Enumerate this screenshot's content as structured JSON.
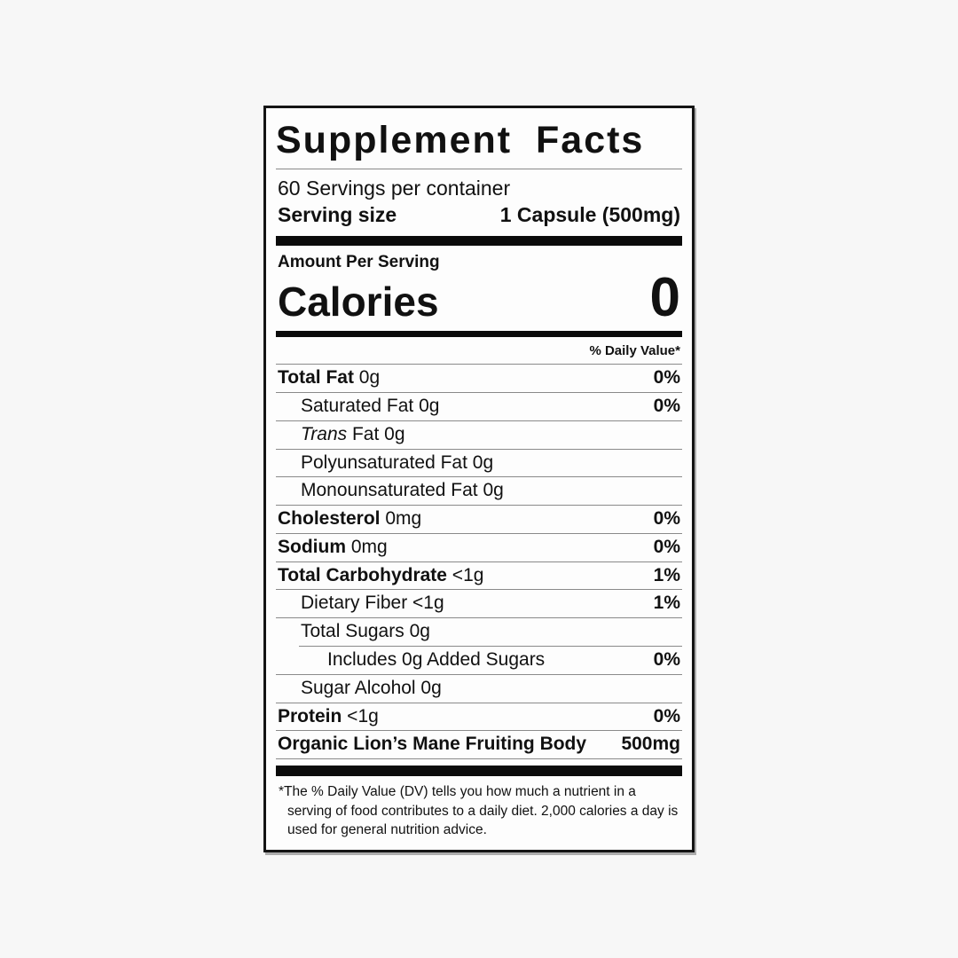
{
  "label": {
    "title": "Supplement Facts",
    "servings_per_container": "60 Servings per container",
    "serving_size_label": "Serving size",
    "serving_size_value": "1 Capsule (500mg)",
    "amount_per_serving": "Amount Per Serving",
    "calories_label": "Calories",
    "calories_value": "0",
    "daily_value_header": "% Daily Value*",
    "rows": [
      {
        "bold": "Total Fat",
        "rest": " 0g",
        "dv": "0%",
        "indent": 0
      },
      {
        "rest": "Saturated Fat 0g",
        "dv": "0%",
        "indent": 1
      },
      {
        "italic": "Trans",
        "rest": " Fat 0g",
        "dv": "",
        "indent": 1
      },
      {
        "rest": "Polyunsaturated Fat 0g",
        "dv": "",
        "indent": 1
      },
      {
        "rest": "Monounsaturated Fat 0g",
        "dv": "",
        "indent": 1
      },
      {
        "bold": "Cholesterol",
        "rest": " 0mg",
        "dv": "0%",
        "indent": 0
      },
      {
        "bold": "Sodium",
        "rest": " 0mg",
        "dv": "0%",
        "indent": 0
      },
      {
        "bold": "Total Carbohydrate",
        "rest": " <1g",
        "dv": "1%",
        "indent": 0
      },
      {
        "rest": "Dietary Fiber <1g",
        "dv": "1%",
        "indent": 1
      },
      {
        "rest": "Total Sugars 0g",
        "dv": "",
        "indent": 1
      },
      {
        "rest": "Includes 0g Added Sugars",
        "dv": "0%",
        "indent": 2,
        "sep_indented": true
      },
      {
        "rest": "Sugar Alcohol 0g",
        "dv": "",
        "indent": 1
      },
      {
        "bold": "Protein",
        "rest": " <1g",
        "dv": "0%",
        "indent": 0
      },
      {
        "bold": "Organic Lion’s Mane Fruiting Body",
        "rest": "",
        "dv": "500mg",
        "indent": 0
      }
    ],
    "footnote_asterisk": "*",
    "footnote": "The % Daily Value (DV) tells you how much a nutrient in a serving of food contributes to a daily diet. 2,000 calories a day is used for general nutrition advice.",
    "colors": {
      "text": "#111111",
      "bars": "#0b0b0b",
      "label_background": "#fdfdfd",
      "page_background": "#f7f7f7",
      "hairline": "#8a8a8a"
    }
  }
}
